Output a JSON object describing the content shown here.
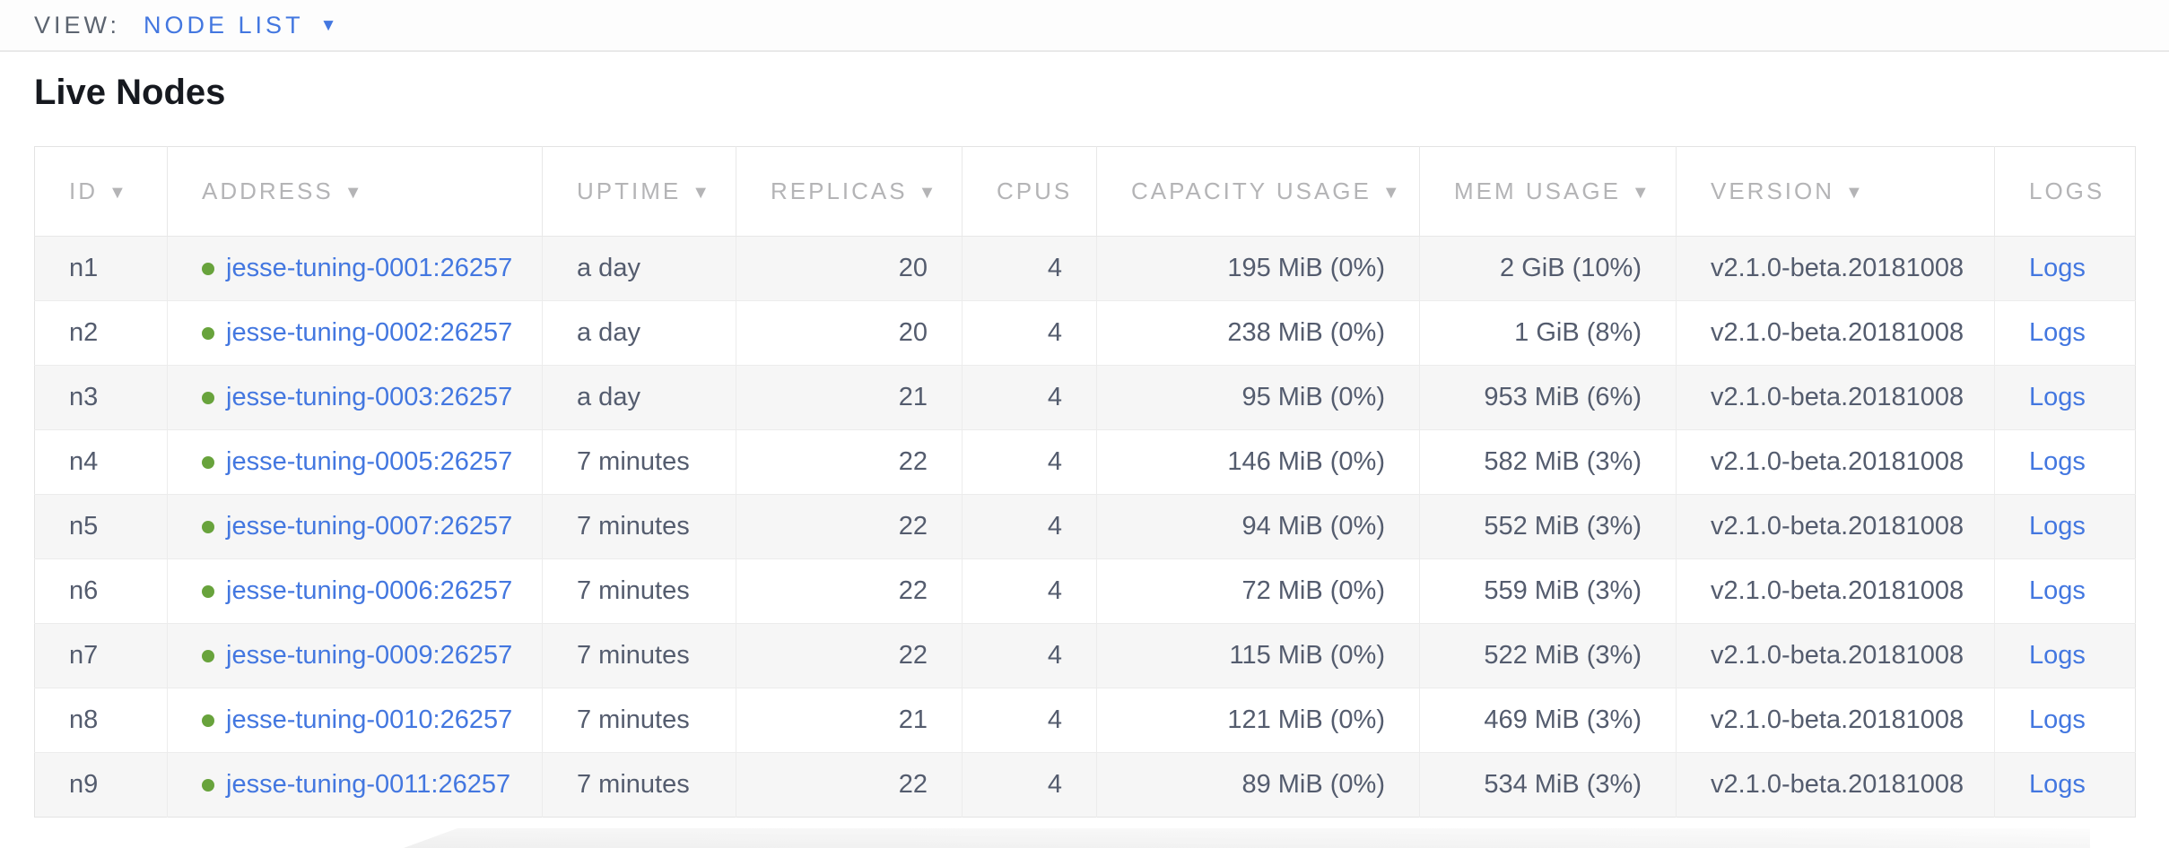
{
  "view_bar": {
    "label": "VIEW:",
    "selected": "NODE LIST"
  },
  "page": {
    "title": "Live Nodes"
  },
  "icons": {
    "sort_desc": "▼",
    "caret_down": "▼",
    "status_dot": "green-circle"
  },
  "colors": {
    "accent_blue": "#4377e0",
    "status_green": "#68a33c",
    "header_gray": "#b4b4b6",
    "cell_text": "#545c6e",
    "row_stripe": "#f6f6f6"
  },
  "table": {
    "columns": [
      {
        "label": "ID",
        "sortable": true
      },
      {
        "label": "ADDRESS",
        "sortable": true
      },
      {
        "label": "UPTIME",
        "sortable": true
      },
      {
        "label": "REPLICAS",
        "sortable": true
      },
      {
        "label": "CPUS",
        "sortable": false
      },
      {
        "label": "CAPACITY USAGE",
        "sortable": true
      },
      {
        "label": "MEM USAGE",
        "sortable": true
      },
      {
        "label": "VERSION",
        "sortable": true
      },
      {
        "label": "LOGS",
        "sortable": false
      }
    ],
    "rows": [
      {
        "id": "n1",
        "address": "jesse-tuning-0001:26257",
        "uptime": "a day",
        "replicas": "20",
        "cpus": "4",
        "capacity": "195 MiB (0%)",
        "mem": "2 GiB (10%)",
        "version": "v2.1.0-beta.20181008",
        "logs": "Logs"
      },
      {
        "id": "n2",
        "address": "jesse-tuning-0002:26257",
        "uptime": "a day",
        "replicas": "20",
        "cpus": "4",
        "capacity": "238 MiB (0%)",
        "mem": "1 GiB (8%)",
        "version": "v2.1.0-beta.20181008",
        "logs": "Logs"
      },
      {
        "id": "n3",
        "address": "jesse-tuning-0003:26257",
        "uptime": "a day",
        "replicas": "21",
        "cpus": "4",
        "capacity": "95 MiB (0%)",
        "mem": "953 MiB (6%)",
        "version": "v2.1.0-beta.20181008",
        "logs": "Logs"
      },
      {
        "id": "n4",
        "address": "jesse-tuning-0005:26257",
        "uptime": "7 minutes",
        "replicas": "22",
        "cpus": "4",
        "capacity": "146 MiB (0%)",
        "mem": "582 MiB (3%)",
        "version": "v2.1.0-beta.20181008",
        "logs": "Logs"
      },
      {
        "id": "n5",
        "address": "jesse-tuning-0007:26257",
        "uptime": "7 minutes",
        "replicas": "22",
        "cpus": "4",
        "capacity": "94 MiB (0%)",
        "mem": "552 MiB (3%)",
        "version": "v2.1.0-beta.20181008",
        "logs": "Logs"
      },
      {
        "id": "n6",
        "address": "jesse-tuning-0006:26257",
        "uptime": "7 minutes",
        "replicas": "22",
        "cpus": "4",
        "capacity": "72 MiB (0%)",
        "mem": "559 MiB (3%)",
        "version": "v2.1.0-beta.20181008",
        "logs": "Logs"
      },
      {
        "id": "n7",
        "address": "jesse-tuning-0009:26257",
        "uptime": "7 minutes",
        "replicas": "22",
        "cpus": "4",
        "capacity": "115 MiB (0%)",
        "mem": "522 MiB (3%)",
        "version": "v2.1.0-beta.20181008",
        "logs": "Logs"
      },
      {
        "id": "n8",
        "address": "jesse-tuning-0010:26257",
        "uptime": "7 minutes",
        "replicas": "21",
        "cpus": "4",
        "capacity": "121 MiB (0%)",
        "mem": "469 MiB (3%)",
        "version": "v2.1.0-beta.20181008",
        "logs": "Logs"
      },
      {
        "id": "n9",
        "address": "jesse-tuning-0011:26257",
        "uptime": "7 minutes",
        "replicas": "22",
        "cpus": "4",
        "capacity": "89 MiB (0%)",
        "mem": "534 MiB (3%)",
        "version": "v2.1.0-beta.20181008",
        "logs": "Logs"
      }
    ]
  }
}
